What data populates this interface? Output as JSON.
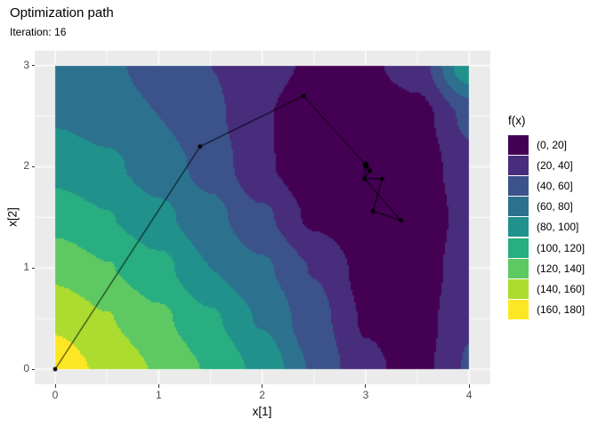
{
  "header": {
    "title": "Optimization path",
    "subtitle": "Iteration: 16",
    "iteration": 16
  },
  "chart_data": {
    "type": "contour-filled-with-path",
    "title": "Optimization path",
    "subtitle": "Iteration: 16",
    "xlabel": "x[1]",
    "ylabel": "x[2]",
    "x_range": [
      0,
      4
    ],
    "y_range": [
      0,
      3
    ],
    "x_major_ticks": [
      0,
      1,
      2,
      3,
      4
    ],
    "x_minor_ticks": [
      0.5,
      1.5,
      2.5,
      3.5
    ],
    "y_major_ticks": [
      0,
      1,
      2,
      3
    ],
    "y_minor_ticks": [
      0.5,
      1.5,
      2.5
    ],
    "fill_breaks": [
      0,
      20,
      40,
      60,
      80,
      100,
      120,
      140,
      160,
      180
    ],
    "palette": [
      "#440154",
      "#472D7B",
      "#3B528B",
      "#2C728E",
      "#21918C",
      "#28AE80",
      "#5EC962",
      "#ADDC30",
      "#FDE725"
    ],
    "legend": {
      "title": "f(x)",
      "entries": [
        {
          "label": "(0, 20]",
          "color": "#440154"
        },
        {
          "label": "(20, 40]",
          "color": "#472D7B"
        },
        {
          "label": "(40, 60]",
          "color": "#3B528B"
        },
        {
          "label": "(60, 80]",
          "color": "#2C728E"
        },
        {
          "label": "(80, 100]",
          "color": "#21918C"
        },
        {
          "label": "(100, 120]",
          "color": "#28AE80"
        },
        {
          "label": "(120, 140]",
          "color": "#5EC962"
        },
        {
          "label": "(140, 160]",
          "color": "#ADDC30"
        },
        {
          "label": "(160, 180]",
          "color": "#FDE725"
        }
      ]
    },
    "surface_grid": {
      "comment": "f(x1,x2) sampled on regular grid; rows ordered bottom (x2=0) to top (x2=3)",
      "x": [
        0,
        0.5,
        1,
        1.5,
        2,
        2.5,
        3,
        3.5,
        4
      ],
      "y": [
        0,
        0.5,
        1,
        1.5,
        2,
        2.5,
        3
      ],
      "f": [
        [
          172,
          155,
          138,
          118,
          94,
          58,
          24,
          13,
          42
        ],
        [
          156,
          141,
          124,
          103,
          78,
          48,
          18,
          10,
          38
        ],
        [
          134,
          121,
          106,
          80,
          63,
          39,
          13,
          5,
          35
        ],
        [
          112,
          101,
          85,
          66,
          44,
          16,
          3,
          2,
          30
        ],
        [
          92,
          84,
          70,
          53,
          23,
          4,
          0.5,
          8,
          33
        ],
        [
          78,
          72,
          60,
          45,
          22,
          6,
          5,
          12,
          45
        ],
        [
          72,
          64,
          52,
          40,
          27,
          17,
          16,
          30,
          95
        ]
      ]
    },
    "path_points": [
      [
        0.0,
        0.0
      ],
      [
        1.4,
        2.2
      ],
      [
        2.4,
        2.7
      ],
      [
        3.0,
        2.02
      ],
      [
        3.04,
        1.96
      ],
      [
        2.99,
        1.88
      ],
      [
        3.34,
        1.47
      ],
      [
        3.07,
        1.56
      ],
      [
        3.16,
        1.88
      ],
      [
        2.99,
        1.885
      ],
      [
        3.0,
        2.0
      ],
      [
        3.005,
        2.025
      ],
      [
        2.995,
        2.01
      ],
      [
        3.01,
        2.0
      ],
      [
        3.0,
        2.03
      ],
      [
        3.005,
        2.015
      ],
      [
        3.0,
        2.02
      ]
    ],
    "path_color": "#000000",
    "point_color": "#000000",
    "legend_position": "right",
    "grid": "white major+minor on grey panel margins"
  },
  "theme": {
    "panel_background": "#EBEBEB",
    "plot_background": "#FFFFFF",
    "gridline_color": "#FFFFFF",
    "tick_mark_color": "#333333",
    "tick_label_color": "#4D4D4D",
    "text_color": "#000000"
  }
}
